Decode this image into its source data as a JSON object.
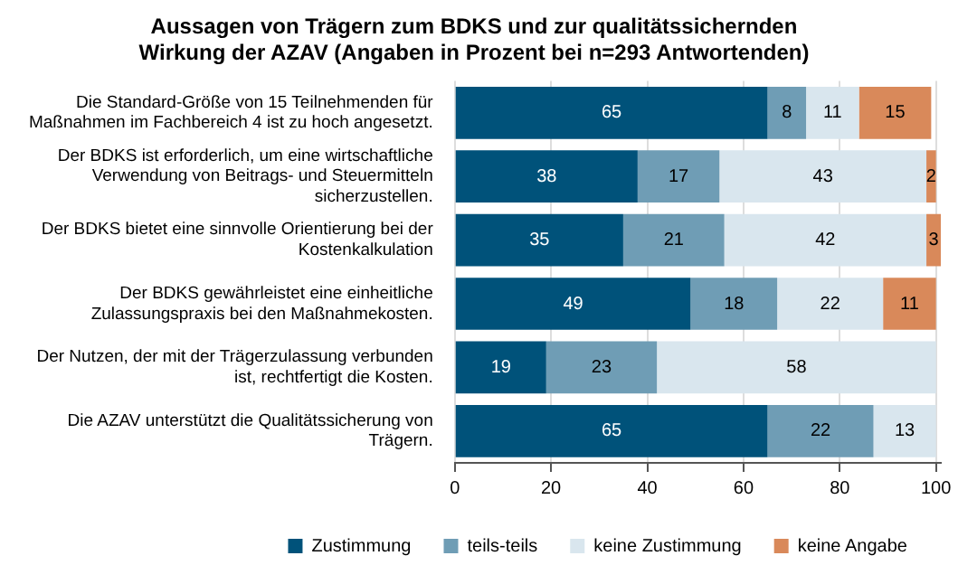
{
  "chart_data": {
    "type": "bar",
    "orientation": "horizontal",
    "stacked": true,
    "title": "Aussagen von Trägern zum BDKS und zur qualitätssichernden Wirkung der AZAV (Angaben in Prozent bei n=293 Antwortenden)",
    "categories": [
      "Die Standard-Größe von 15 Teilnehmenden für Maßnahmen im Fachbereich 4 ist zu hoch angesetzt.",
      "Der BDKS ist erforderlich, um eine wirtschaftliche Verwendung von Beitrags- und Steuermitteln sicherzustellen.",
      "Der BDKS bietet eine sinnvolle Orientierung bei der Kostenkalkulation",
      "Der BDKS gewährleistet eine einheitliche Zulassungspraxis bei den Maßnahmekosten.",
      "Der Nutzen, der mit der Trägerzulassung verbunden ist, rechtfertigt die Kosten.",
      "Die AZAV unterstützt die Qualitätssicherung von Trägern."
    ],
    "series": [
      {
        "name": "Zustimmung",
        "color": "#00527a",
        "values": [
          65,
          38,
          35,
          49,
          19,
          65
        ]
      },
      {
        "name": "teils-teils",
        "color": "#6f9db5",
        "values": [
          8,
          17,
          21,
          18,
          23,
          22
        ]
      },
      {
        "name": "keine Zustimmung",
        "color": "#d9e6ee",
        "values": [
          11,
          43,
          42,
          22,
          58,
          13
        ]
      },
      {
        "name": "keine Angabe",
        "color": "#d9895a",
        "values": [
          15,
          2,
          3,
          11,
          null,
          null
        ]
      }
    ],
    "xlim": [
      0,
      101
    ],
    "xticks": [
      0,
      20,
      40,
      60,
      80,
      100
    ],
    "grid": "x",
    "legend": "bottom",
    "data_labels": true
  }
}
